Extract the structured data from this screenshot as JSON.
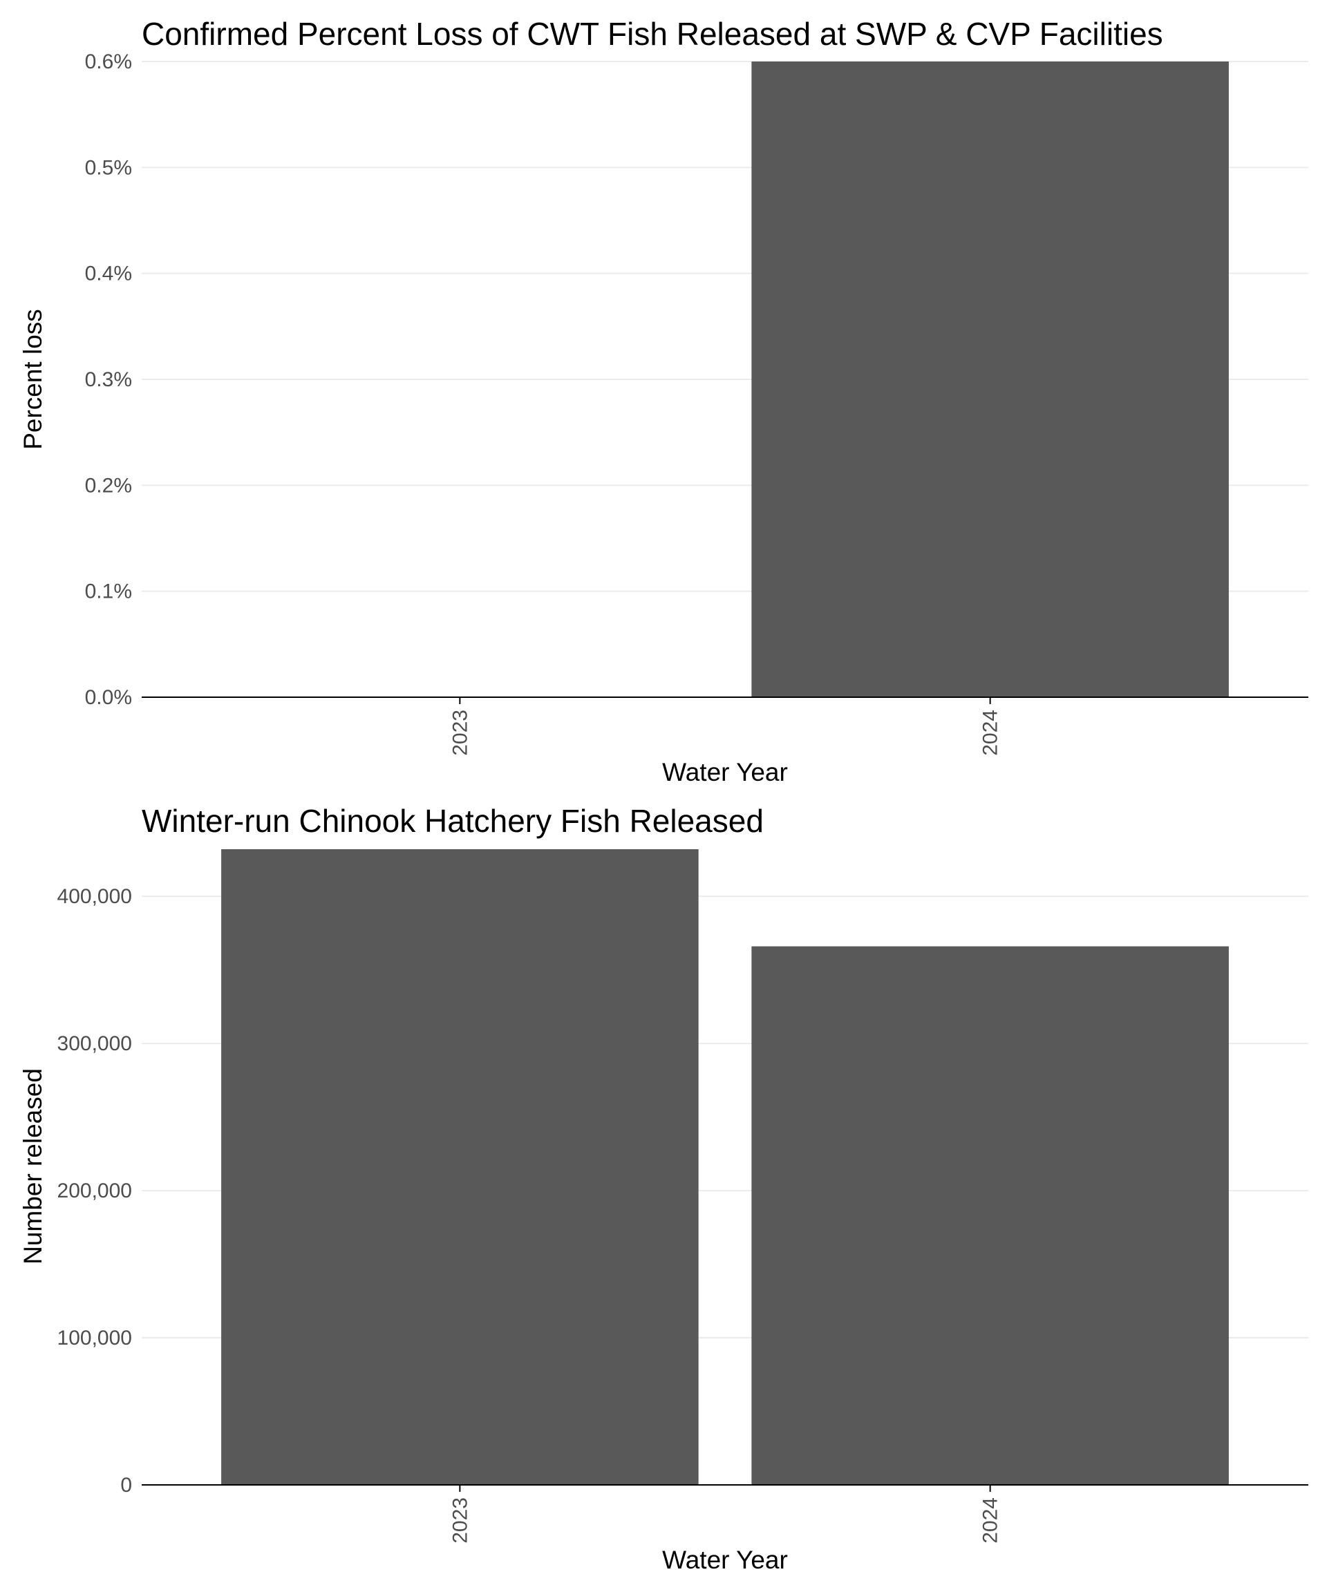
{
  "chart_data": [
    {
      "type": "bar",
      "title": "Confirmed Percent Loss of CWT Fish Released at SWP & CVP Facilities",
      "xlabel": "Water Year",
      "ylabel": "Percent loss",
      "categories": [
        "2023",
        "2024"
      ],
      "values": [
        0.0,
        0.6
      ],
      "ylim": [
        0,
        0.6
      ],
      "yticks": [
        0.0,
        0.1,
        0.2,
        0.3,
        0.4,
        0.5,
        0.6
      ],
      "ytick_labels": [
        "0.0%",
        "0.1%",
        "0.2%",
        "0.3%",
        "0.4%",
        "0.5%",
        "0.6%"
      ],
      "grid": true,
      "bar_color": "#595959"
    },
    {
      "type": "bar",
      "title": "Winter-run Chinook Hatchery Fish Released",
      "xlabel": "Water Year",
      "ylabel": "Number released",
      "categories": [
        "2023",
        "2024"
      ],
      "values": [
        432000,
        366000
      ],
      "ylim": [
        0,
        432000
      ],
      "yticks": [
        0,
        100000,
        200000,
        300000,
        400000
      ],
      "ytick_labels": [
        "0",
        "100,000",
        "200,000",
        "300,000",
        "400,000"
      ],
      "grid": true,
      "bar_color": "#595959"
    }
  ]
}
